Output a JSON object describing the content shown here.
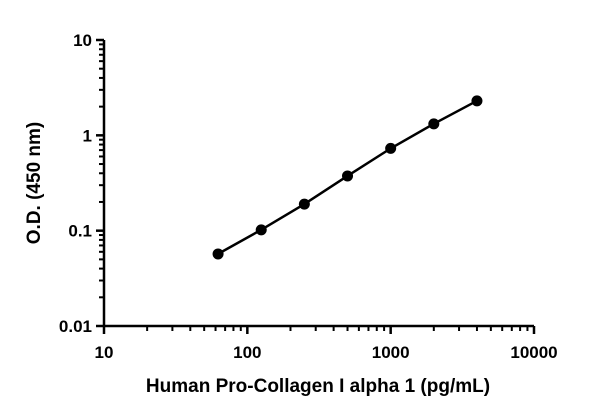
{
  "chart_data": {
    "type": "line",
    "title": "",
    "xlabel": "Human Pro-Collagen I alpha 1 (pg/mL)",
    "ylabel": "O.D. (450 nm)",
    "xscale": "log",
    "yscale": "log",
    "xlim": [
      10,
      10000
    ],
    "ylim": [
      0.01,
      10
    ],
    "x_ticks": [
      "10",
      "100",
      "1000",
      "10000"
    ],
    "y_ticks": [
      "0.01",
      "0.1",
      "1",
      "10"
    ],
    "grid": false,
    "legend": "none",
    "series": [
      {
        "x": [
          62.5,
          125,
          250,
          500,
          1000,
          2000,
          4000
        ],
        "y": [
          0.057,
          0.102,
          0.19,
          0.375,
          0.73,
          1.32,
          2.3
        ],
        "markers": "filled-circle",
        "color": "#000000"
      }
    ]
  }
}
